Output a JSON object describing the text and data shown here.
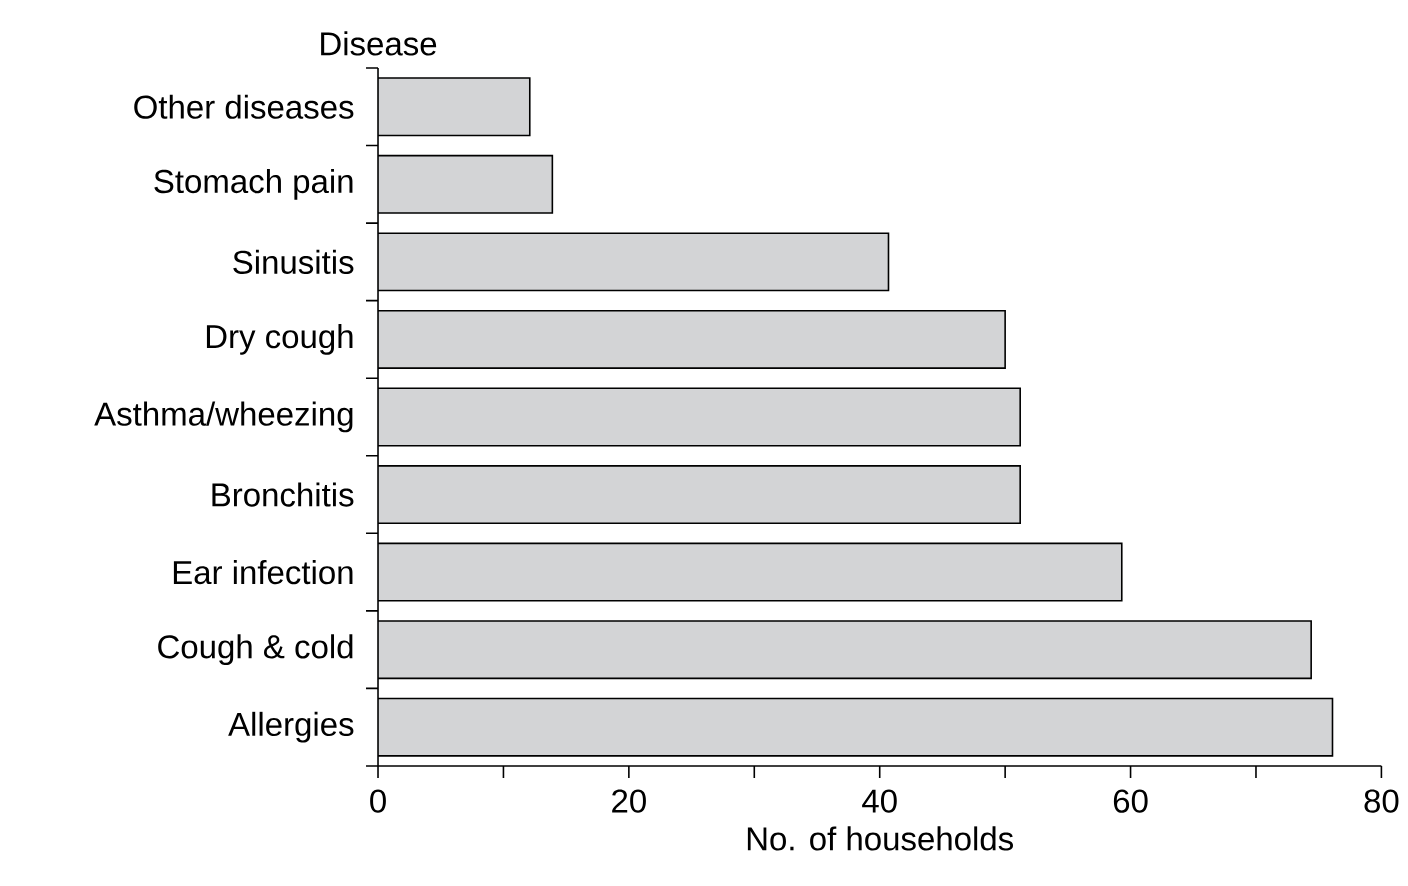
{
  "chart_data": {
    "type": "bar",
    "orientation": "horizontal",
    "ylabel": "Disease",
    "xlabel": "No. of households",
    "categories": [
      "Other diseases",
      "Stomach pain",
      "Sinusitis",
      "Dry cough",
      "Asthma/wheezing",
      "Bronchitis",
      "Ear infection",
      "Cough & cold",
      "Allergies"
    ],
    "values": [
      12.1,
      13.9,
      40.7,
      50.0,
      51.2,
      51.2,
      59.3,
      74.4,
      76.1
    ],
    "color": "#d3d4d6",
    "xlim": [
      0,
      80
    ],
    "xticks": [
      0,
      {
        "value": 10,
        "label": null
      },
      20,
      {
        "value": 30,
        "label": null
      },
      40,
      {
        "value": 50,
        "label": null
      },
      60,
      {
        "value": 70,
        "label": null
      },
      80
    ]
  }
}
